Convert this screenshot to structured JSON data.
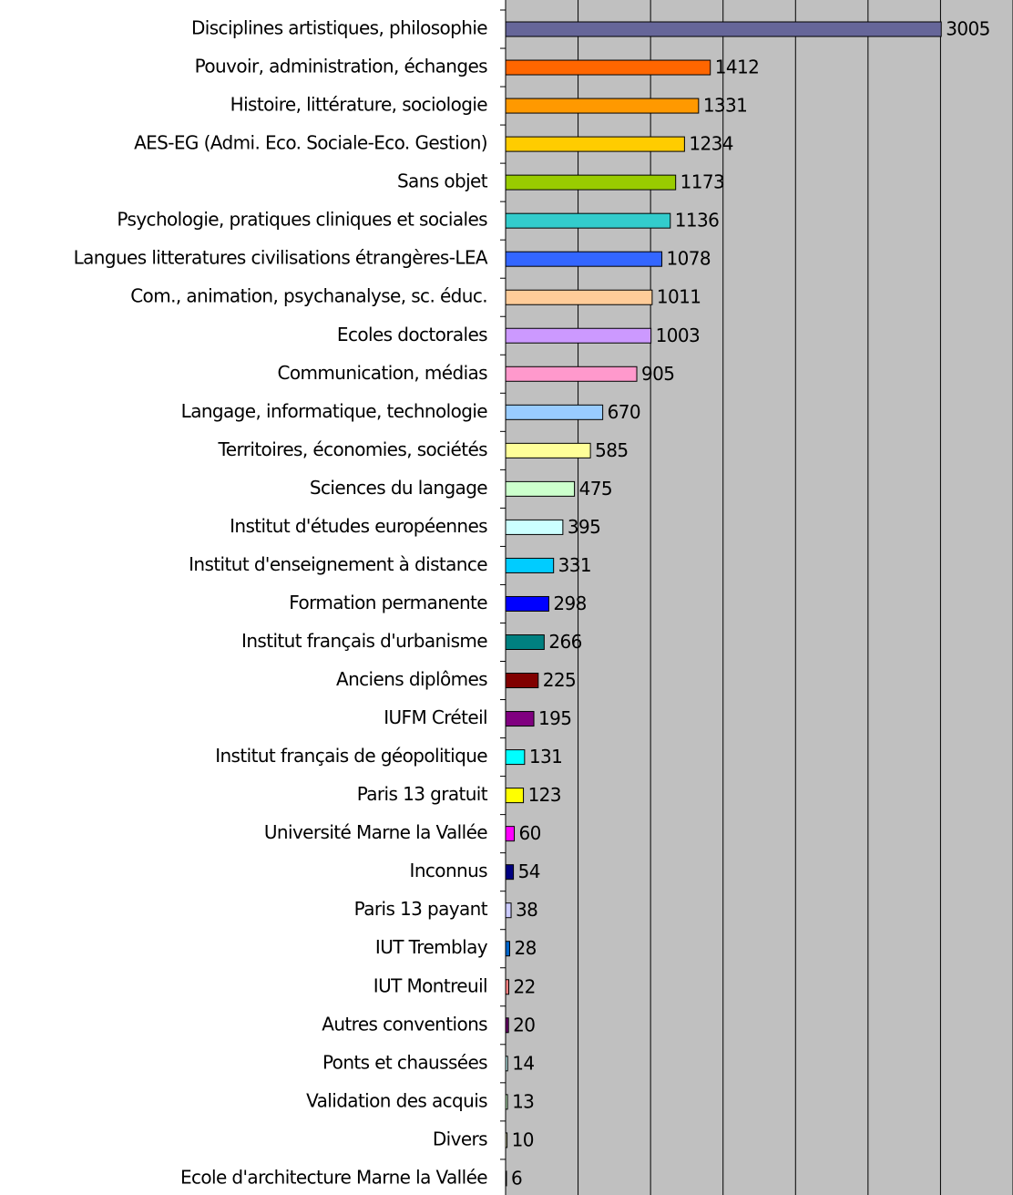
{
  "chart_data": {
    "type": "bar",
    "orientation": "horizontal",
    "categories": [
      "Disciplines artistiques, philosophie",
      "Pouvoir, administration, échanges",
      "Histoire, littérature, sociologie",
      "AES-EG (Admi. Eco. Sociale-Eco. Gestion)",
      "Sans objet",
      "Psychologie, pratiques cliniques et sociales",
      "Langues litteratures civilisations étrangères-LEA",
      "Com., animation, psychanalyse, sc. éduc.",
      "Ecoles doctorales",
      "Communication, médias",
      "Langage, informatique, technologie",
      "Territoires, économies, sociétés",
      "Sciences du langage",
      "Institut d'études européennes",
      "Institut d'enseignement à distance",
      "Formation permanente",
      "Institut français d'urbanisme",
      "Anciens diplômes",
      "IUFM Créteil",
      "Institut français de géopolitique",
      "Paris 13 gratuit",
      "Université Marne la Vallée",
      "Inconnus",
      "Paris 13 payant",
      "IUT Tremblay",
      "IUT Montreuil",
      "Autres conventions",
      "Ponts et chaussées",
      "Validation des acquis",
      "Divers",
      "Ecole d'architecture Marne la Vallée"
    ],
    "values": [
      3005,
      1412,
      1331,
      1234,
      1173,
      1136,
      1078,
      1011,
      1003,
      905,
      670,
      585,
      475,
      395,
      331,
      298,
      266,
      225,
      195,
      131,
      123,
      60,
      54,
      38,
      28,
      22,
      20,
      14,
      13,
      10,
      6
    ],
    "colors": [
      "#666699",
      "#ff6600",
      "#ff9900",
      "#ffcc00",
      "#99cc00",
      "#33cccc",
      "#3366ff",
      "#ffcc99",
      "#cc99ff",
      "#ff99cc",
      "#99ccff",
      "#ffff99",
      "#ccffcc",
      "#ccffff",
      "#00ccff",
      "#0000ff",
      "#008080",
      "#800000",
      "#800080",
      "#00ffff",
      "#ffff00",
      "#ff00ff",
      "#000080",
      "#ccccff",
      "#0066cc",
      "#ff8080",
      "#660066",
      "#ccffff",
      "#ccffcc",
      "#ffffcc",
      "#ccccff"
    ],
    "xlim": [
      0,
      3500
    ],
    "xticks": [
      0,
      500,
      1000,
      1500,
      2000,
      2500,
      3000,
      3500
    ],
    "grid": true,
    "background": "#c0c0c0"
  }
}
